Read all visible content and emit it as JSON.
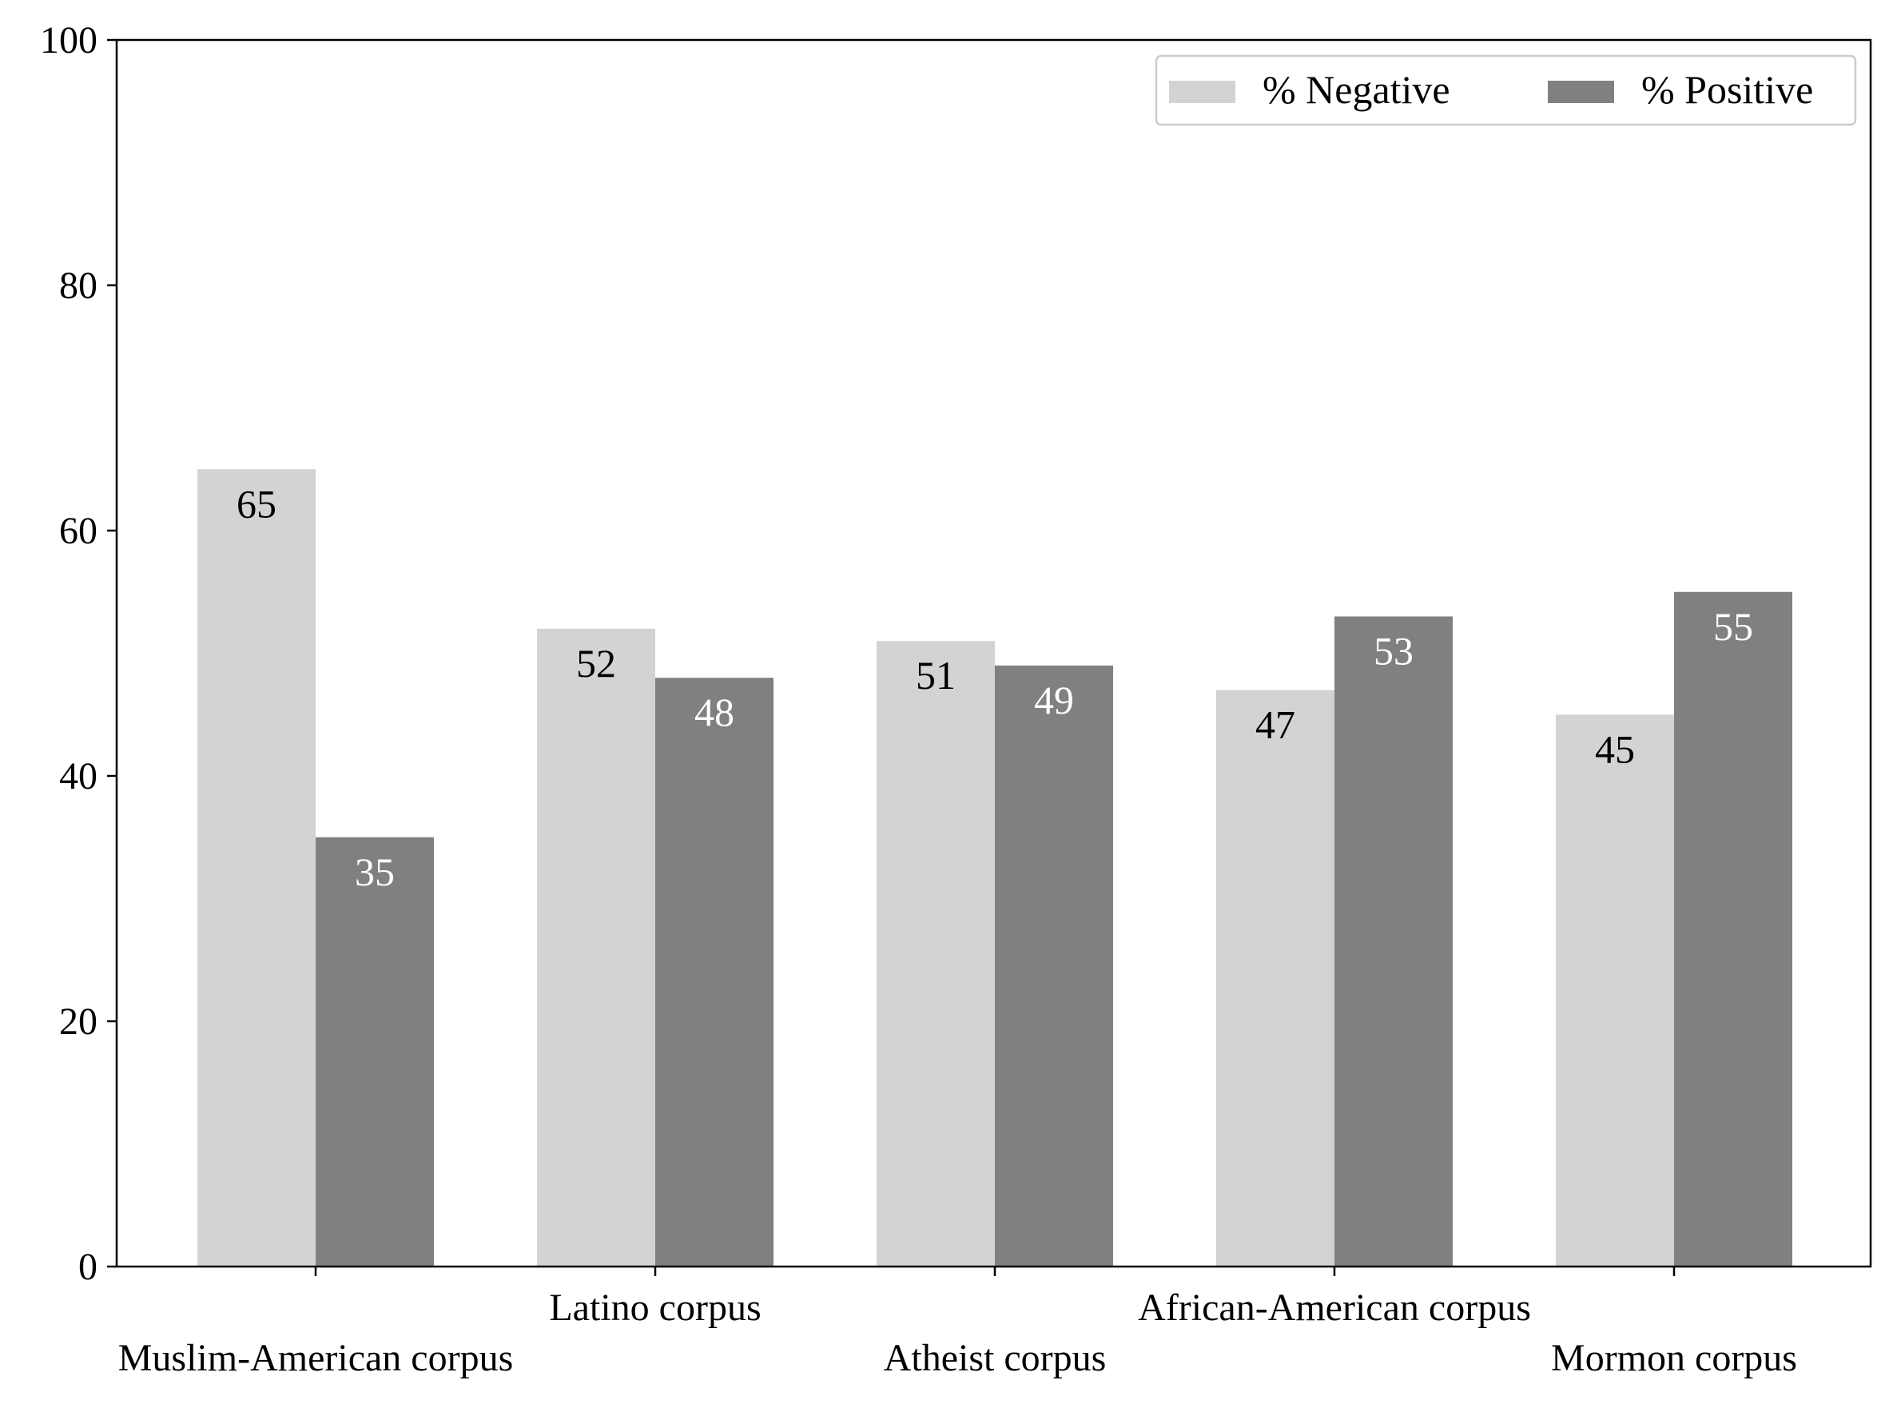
{
  "chart_data": {
    "type": "bar",
    "title": "",
    "xlabel": "",
    "ylabel": "",
    "categories": [
      "Muslim-American corpus",
      "Latino corpus",
      "Atheist corpus",
      "African-American corpus",
      "Mormon corpus"
    ],
    "series": [
      {
        "name": "% Negative",
        "values": [
          65,
          52,
          51,
          47,
          45
        ],
        "color": "#d3d3d3",
        "label_color": "#000000"
      },
      {
        "name": "% Positive",
        "values": [
          35,
          48,
          49,
          53,
          55
        ],
        "color": "#808080",
        "label_color": "#ffffff"
      }
    ],
    "ylim": [
      0,
      100
    ],
    "yticks": [
      "0",
      "20",
      "40",
      "60",
      "80",
      "100"
    ],
    "grid": false,
    "legend_position": "top-right",
    "category_labels_staggered": true
  }
}
